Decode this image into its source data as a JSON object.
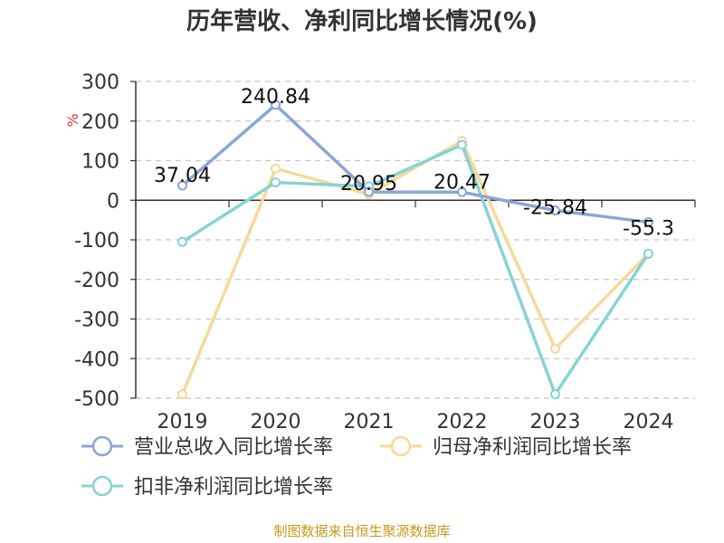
{
  "chart_data": {
    "type": "line",
    "title": "历年营收、净利同比增长情况(%)",
    "unit_label": "%",
    "categories": [
      "2019",
      "2020",
      "2021",
      "2022",
      "2023",
      "2024"
    ],
    "ylim": [
      -500,
      300
    ],
    "yticks": [
      300,
      200,
      100,
      0,
      -100,
      -200,
      -300,
      -400,
      -500
    ],
    "grid": true,
    "legend_position": "bottom",
    "series": [
      {
        "name": "营业总收入同比增长率",
        "color": "#8ba6d4",
        "values": [
          37.04,
          240.84,
          20.95,
          20.47,
          -25.84,
          -55.3
        ],
        "labels": [
          "37.04",
          "240.84",
          "20.95",
          "20.47",
          "-25.84",
          "-55.3"
        ]
      },
      {
        "name": "归母净利润同比增长率",
        "color": "#f6d99b",
        "values": [
          -490,
          80,
          15,
          150,
          -375,
          -135
        ]
      },
      {
        "name": "扣非净利润同比增长率",
        "color": "#87d3d3",
        "values": [
          -105,
          45,
          35,
          140,
          -490,
          -135
        ]
      }
    ],
    "source": "制图数据来自恒生聚源数据库"
  }
}
